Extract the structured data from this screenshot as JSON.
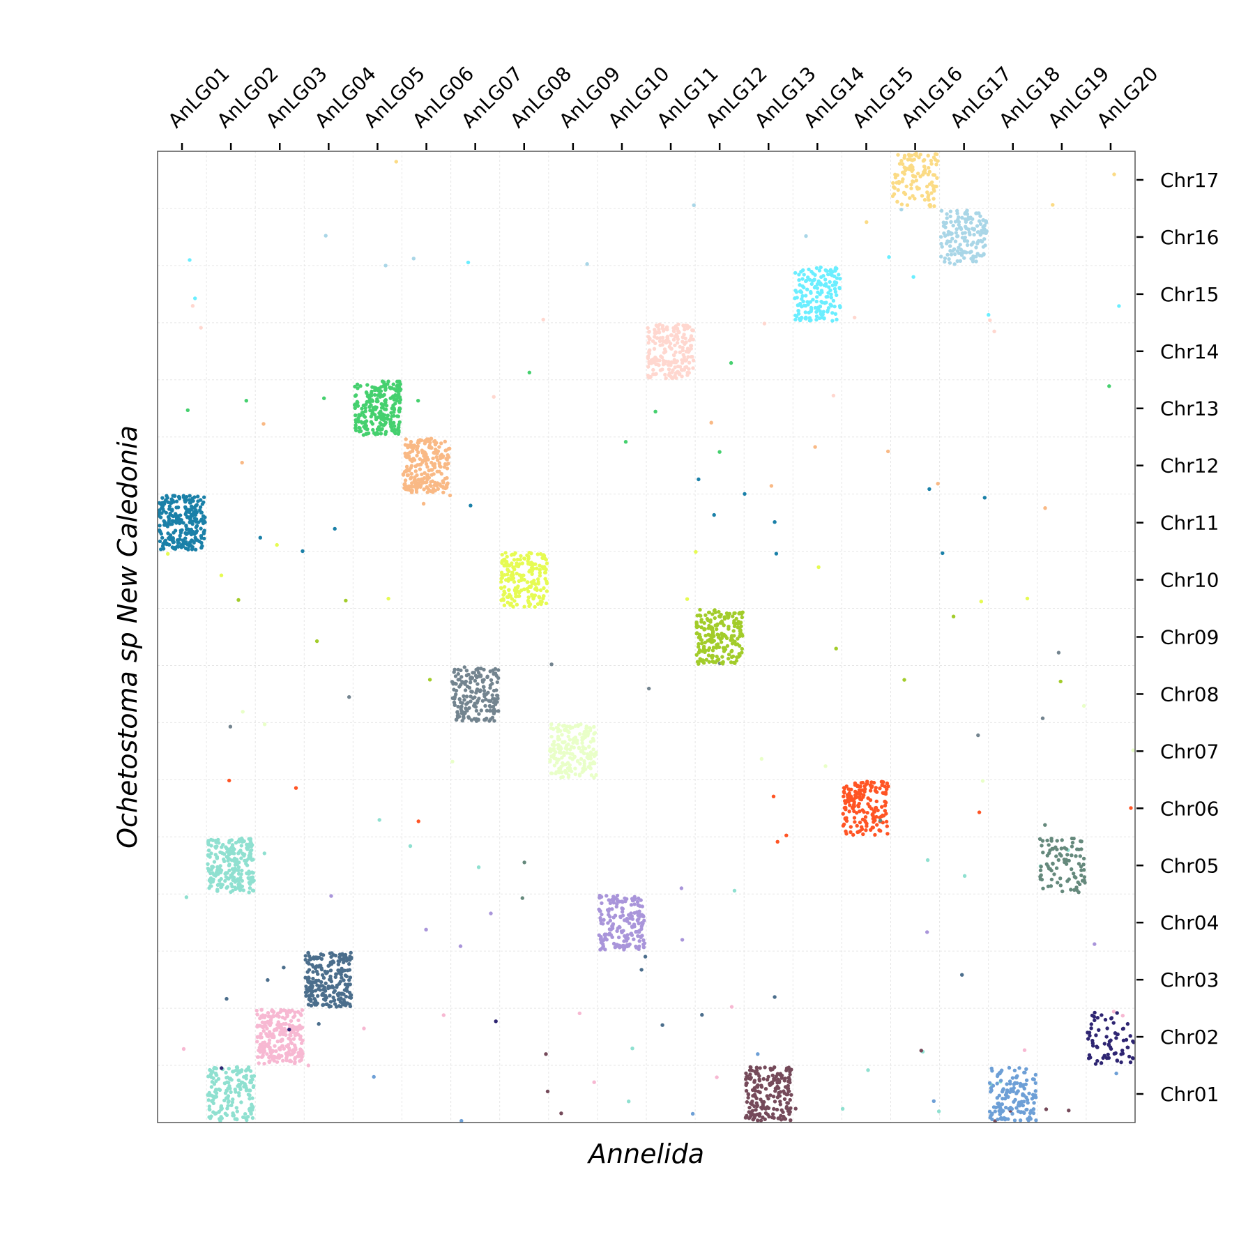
{
  "chart_data": {
    "type": "scatter",
    "xlabel": "Annelida",
    "ylabel": "Ochetostoma sp New Caledonia",
    "x_categories": [
      "AnLG01",
      "AnLG02",
      "AnLG03",
      "AnLG04",
      "AnLG05",
      "AnLG06",
      "AnLG07",
      "AnLG08",
      "AnLG09",
      "AnLG10",
      "AnLG11",
      "AnLG12",
      "AnLG13",
      "AnLG14",
      "AnLG15",
      "AnLG16",
      "AnLG17",
      "AnLG18",
      "AnLG19",
      "AnLG20"
    ],
    "y_categories": [
      "Chr01",
      "Chr02",
      "Chr03",
      "Chr04",
      "Chr05",
      "Chr06",
      "Chr07",
      "Chr08",
      "Chr09",
      "Chr10",
      "Chr11",
      "Chr12",
      "Chr13",
      "Chr14",
      "Chr15",
      "Chr16",
      "Chr17"
    ],
    "x_tick_position": "top",
    "y_tick_position": "right",
    "grid": true,
    "clusters": [
      {
        "x": "AnLG01",
        "y": "Chr11",
        "color": "#1a80a8",
        "points": 260
      },
      {
        "x": "AnLG02",
        "y": "Chr05",
        "color": "#8fe0d0",
        "points": 230
      },
      {
        "x": "AnLG02",
        "y": "Chr01",
        "color": "#8fe0d0",
        "points": 170
      },
      {
        "x": "AnLG03",
        "y": "Chr02",
        "color": "#f7b8d2",
        "points": 260
      },
      {
        "x": "AnLG04",
        "y": "Chr03",
        "color": "#4b6e8c",
        "points": 230
      },
      {
        "x": "AnLG05",
        "y": "Chr13",
        "color": "#45d06e",
        "points": 230
      },
      {
        "x": "AnLG06",
        "y": "Chr12",
        "color": "#f9b985",
        "points": 230
      },
      {
        "x": "AnLG07",
        "y": "Chr08",
        "color": "#73848f",
        "points": 180
      },
      {
        "x": "AnLG08",
        "y": "Chr10",
        "color": "#e6fb52",
        "points": 200
      },
      {
        "x": "AnLG09",
        "y": "Chr07",
        "color": "#e9ffc8",
        "points": 190
      },
      {
        "x": "AnLG10",
        "y": "Chr04",
        "color": "#a995da",
        "points": 180
      },
      {
        "x": "AnLG11",
        "y": "Chr14",
        "color": "#ffd7cf",
        "points": 200
      },
      {
        "x": "AnLG12",
        "y": "Chr09",
        "color": "#a2cc2a",
        "points": 200
      },
      {
        "x": "AnLG13",
        "y": "Chr01",
        "color": "#754a5a",
        "points": 190
      },
      {
        "x": "AnLG14",
        "y": "Chr15",
        "color": "#6aeeff",
        "points": 160
      },
      {
        "x": "AnLG15",
        "y": "Chr06",
        "color": "#ff5424",
        "points": 170
      },
      {
        "x": "AnLG16",
        "y": "Chr17",
        "color": "#fbdb85",
        "points": 110
      },
      {
        "x": "AnLG17",
        "y": "Chr16",
        "color": "#a9d6e7",
        "points": 150
      },
      {
        "x": "AnLG18",
        "y": "Chr01",
        "color": "#6d9fd6",
        "points": 140
      },
      {
        "x": "AnLG19",
        "y": "Chr05",
        "color": "#65897c",
        "points": 90
      },
      {
        "x": "AnLG20",
        "y": "Chr02",
        "color": "#2e2572",
        "points": 70
      }
    ]
  }
}
